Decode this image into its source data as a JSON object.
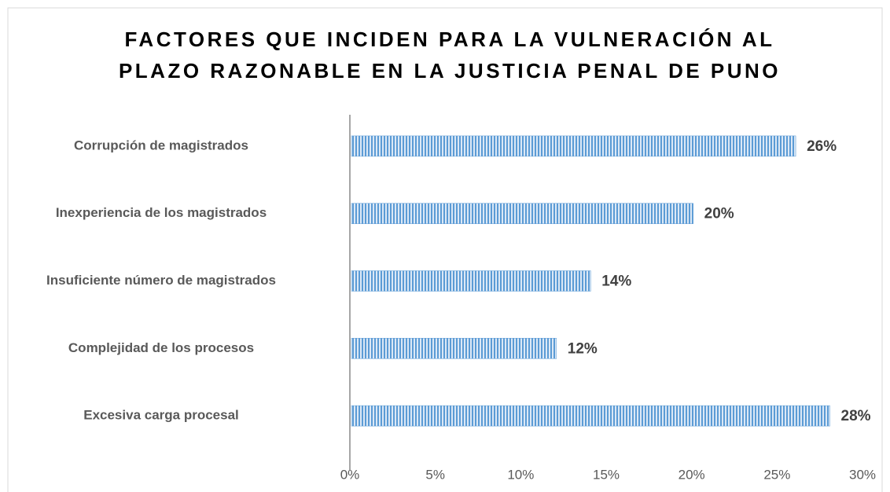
{
  "chart_data": {
    "type": "bar",
    "orientation": "horizontal",
    "title": [
      "FACTORES QUE INCIDEN PARA LA VULNERACIÓN AL",
      "PLAZO RAZONABLE EN LA JUSTICIA PENAL DE PUNO"
    ],
    "categories": [
      "Corrupción de magistrados",
      "Inexperiencia de los magistrados",
      "Insuficiente número de magistrados",
      "Complejidad de los procesos",
      "Excesiva carga procesal"
    ],
    "values": [
      26,
      20,
      14,
      12,
      28
    ],
    "value_labels": [
      "26%",
      "20%",
      "14%",
      "12%",
      "28%"
    ],
    "color": "#5b9bd5",
    "xlim": [
      0,
      30
    ],
    "xticks": [
      {
        "value": 0,
        "label": "0%"
      },
      {
        "value": 5,
        "label": "5%"
      },
      {
        "value": 10,
        "label": "10%"
      },
      {
        "value": 15,
        "label": "15%"
      },
      {
        "value": 20,
        "label": "20%"
      },
      {
        "value": 25,
        "label": "25%"
      },
      {
        "value": 30,
        "label": "30%"
      }
    ],
    "grid": false
  }
}
